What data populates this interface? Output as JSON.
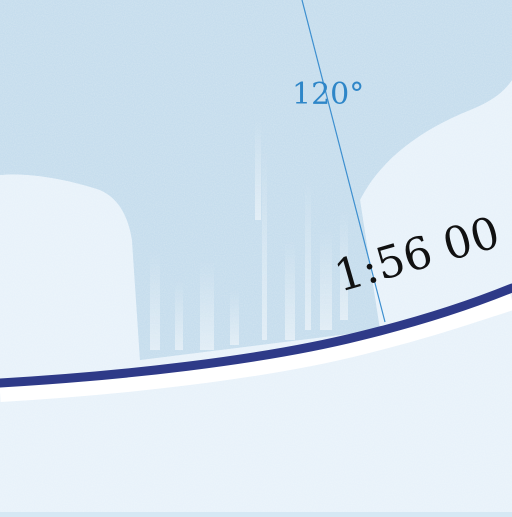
{
  "map": {
    "meridian_label": "120°",
    "scale_label": "1:56 00",
    "colors": {
      "water": "#cfe3f2",
      "ice_shelf": "#e8f2fa",
      "inlet": "#c2dbec",
      "border_line": "#2e3a88",
      "graticule": "#3d8fcf",
      "label_blue": "#2e86c8",
      "label_dark": "#111111"
    }
  }
}
